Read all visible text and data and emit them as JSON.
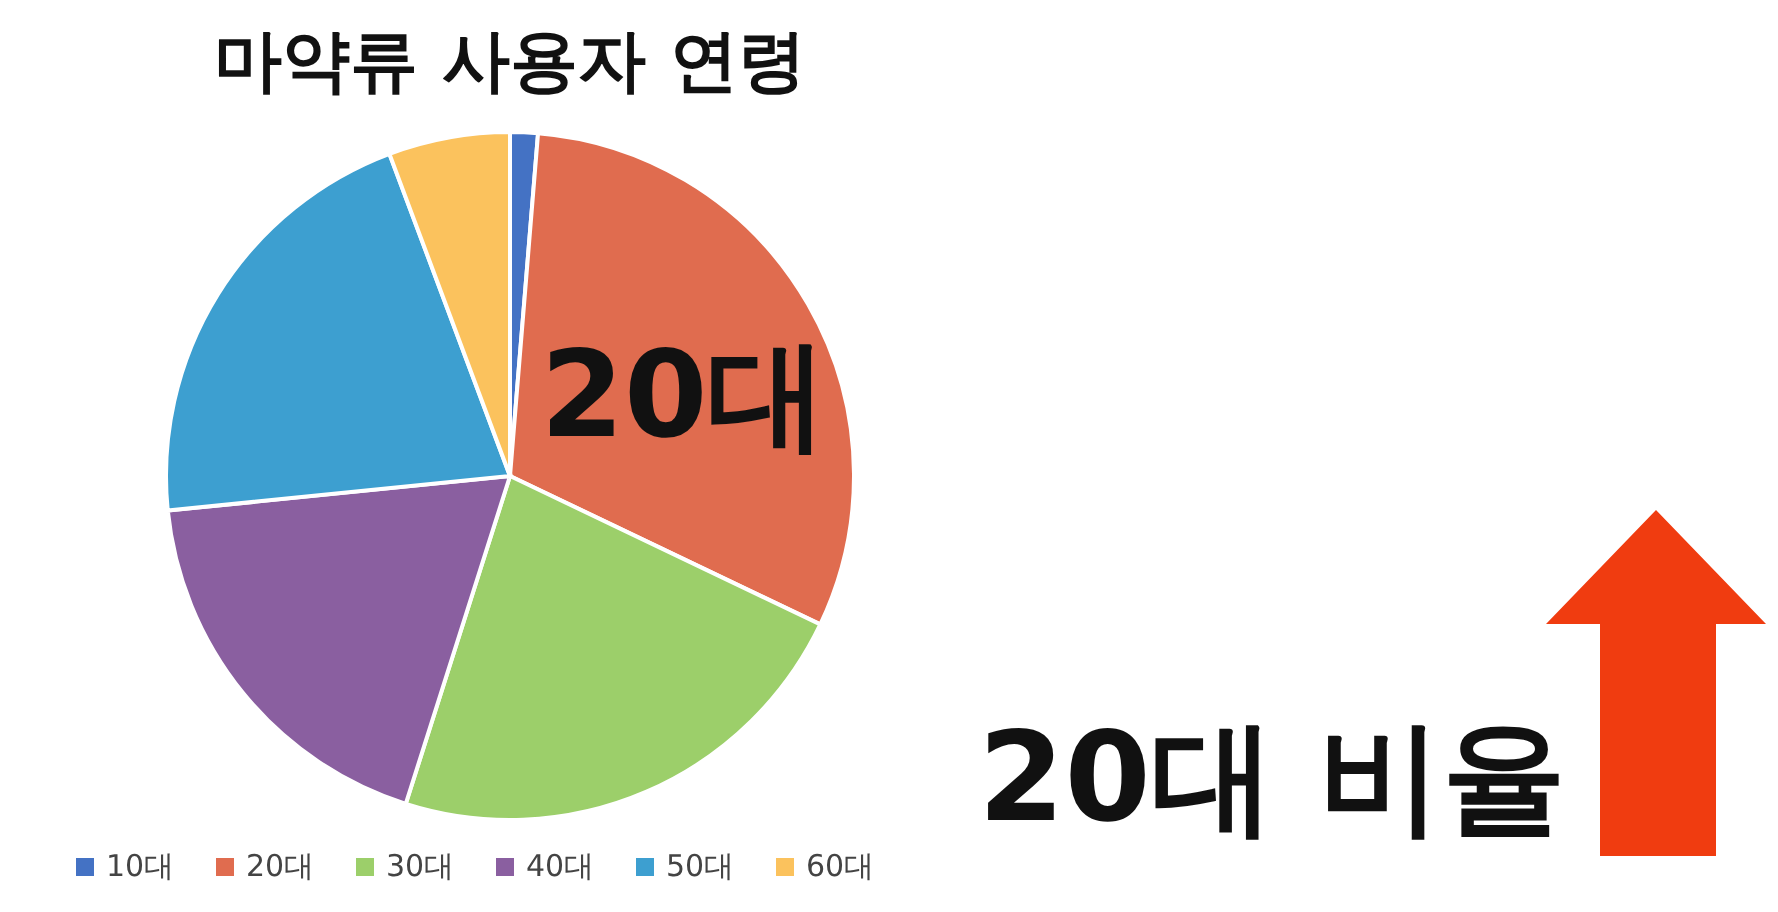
{
  "chart_data": {
    "type": "pie",
    "title": "마약류 사용자 연령",
    "categories": [
      "10대",
      "20대",
      "30대",
      "40대",
      "50대",
      "60대"
    ],
    "values": [
      1.3,
      30.8,
      22.8,
      18.5,
      20.9,
      5.7
    ],
    "colors": [
      "#4472c4",
      "#e06c4f",
      "#9ccf6a",
      "#8a5fa0",
      "#3d9fd0",
      "#fbc25d"
    ],
    "legend": "bottom",
    "annotations": [
      "20대",
      "20대 비율"
    ]
  }
}
